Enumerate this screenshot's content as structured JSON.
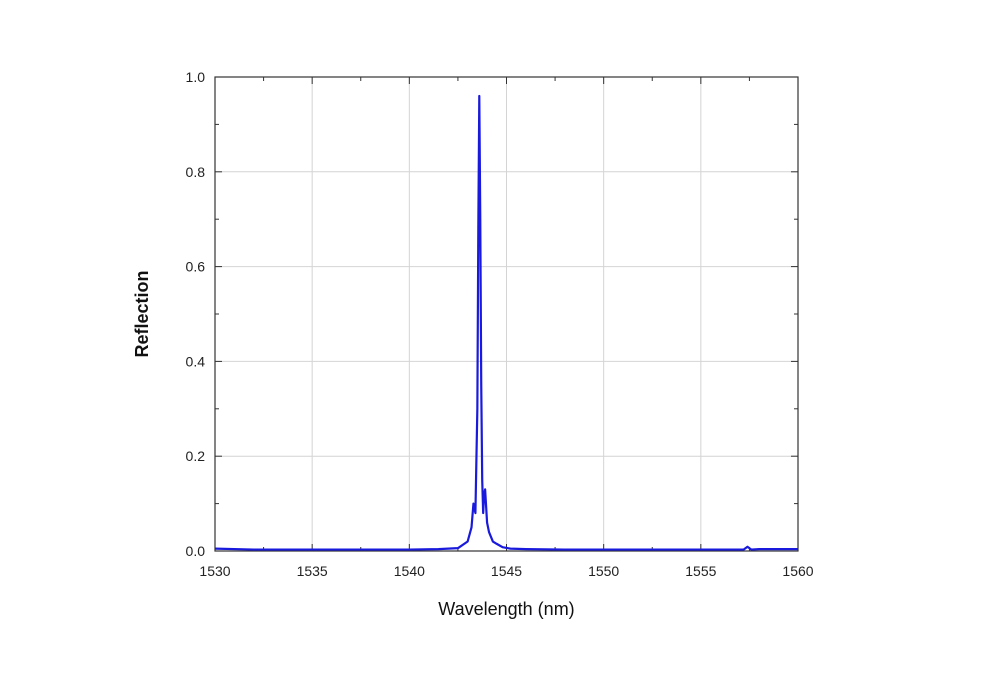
{
  "chart_data": {
    "type": "line",
    "xlabel": "Wavelength (nm)",
    "ylabel": "Reflection",
    "xlim": [
      1530,
      1560
    ],
    "ylim": [
      0,
      1
    ],
    "x_ticks": [
      1530,
      1535,
      1540,
      1545,
      1550,
      1555,
      1560
    ],
    "x_tick_labels": [
      "1530",
      "1535",
      "1540",
      "1545",
      "1550",
      "1555",
      "1560"
    ],
    "y_ticks": [
      0,
      0.2,
      0.4,
      0.6,
      0.8,
      1.0
    ],
    "y_tick_labels": [
      "0.0",
      "0.2",
      "0.4",
      "0.6",
      "0.8",
      "1.0"
    ],
    "grid": true,
    "series": [
      {
        "color": "#1a1adc",
        "x": [
          1530,
          1532,
          1535,
          1538,
          1540,
          1541.5,
          1542.5,
          1543.0,
          1543.2,
          1543.3,
          1543.4,
          1543.5,
          1543.55,
          1543.6,
          1543.65,
          1543.7,
          1543.75,
          1543.8,
          1543.85,
          1543.9,
          1544.0,
          1544.1,
          1544.2,
          1544.3,
          1544.5,
          1544.8,
          1545.2,
          1546,
          1548,
          1550,
          1553,
          1556,
          1557.2,
          1557.4,
          1557.6,
          1558,
          1560
        ],
        "values": [
          0.005,
          0.003,
          0.003,
          0.003,
          0.003,
          0.004,
          0.006,
          0.02,
          0.05,
          0.1,
          0.08,
          0.3,
          0.68,
          0.96,
          0.7,
          0.35,
          0.15,
          0.08,
          0.12,
          0.13,
          0.06,
          0.04,
          0.03,
          0.02,
          0.015,
          0.008,
          0.005,
          0.004,
          0.003,
          0.003,
          0.003,
          0.003,
          0.003,
          0.009,
          0.003,
          0.004,
          0.004
        ]
      }
    ]
  }
}
